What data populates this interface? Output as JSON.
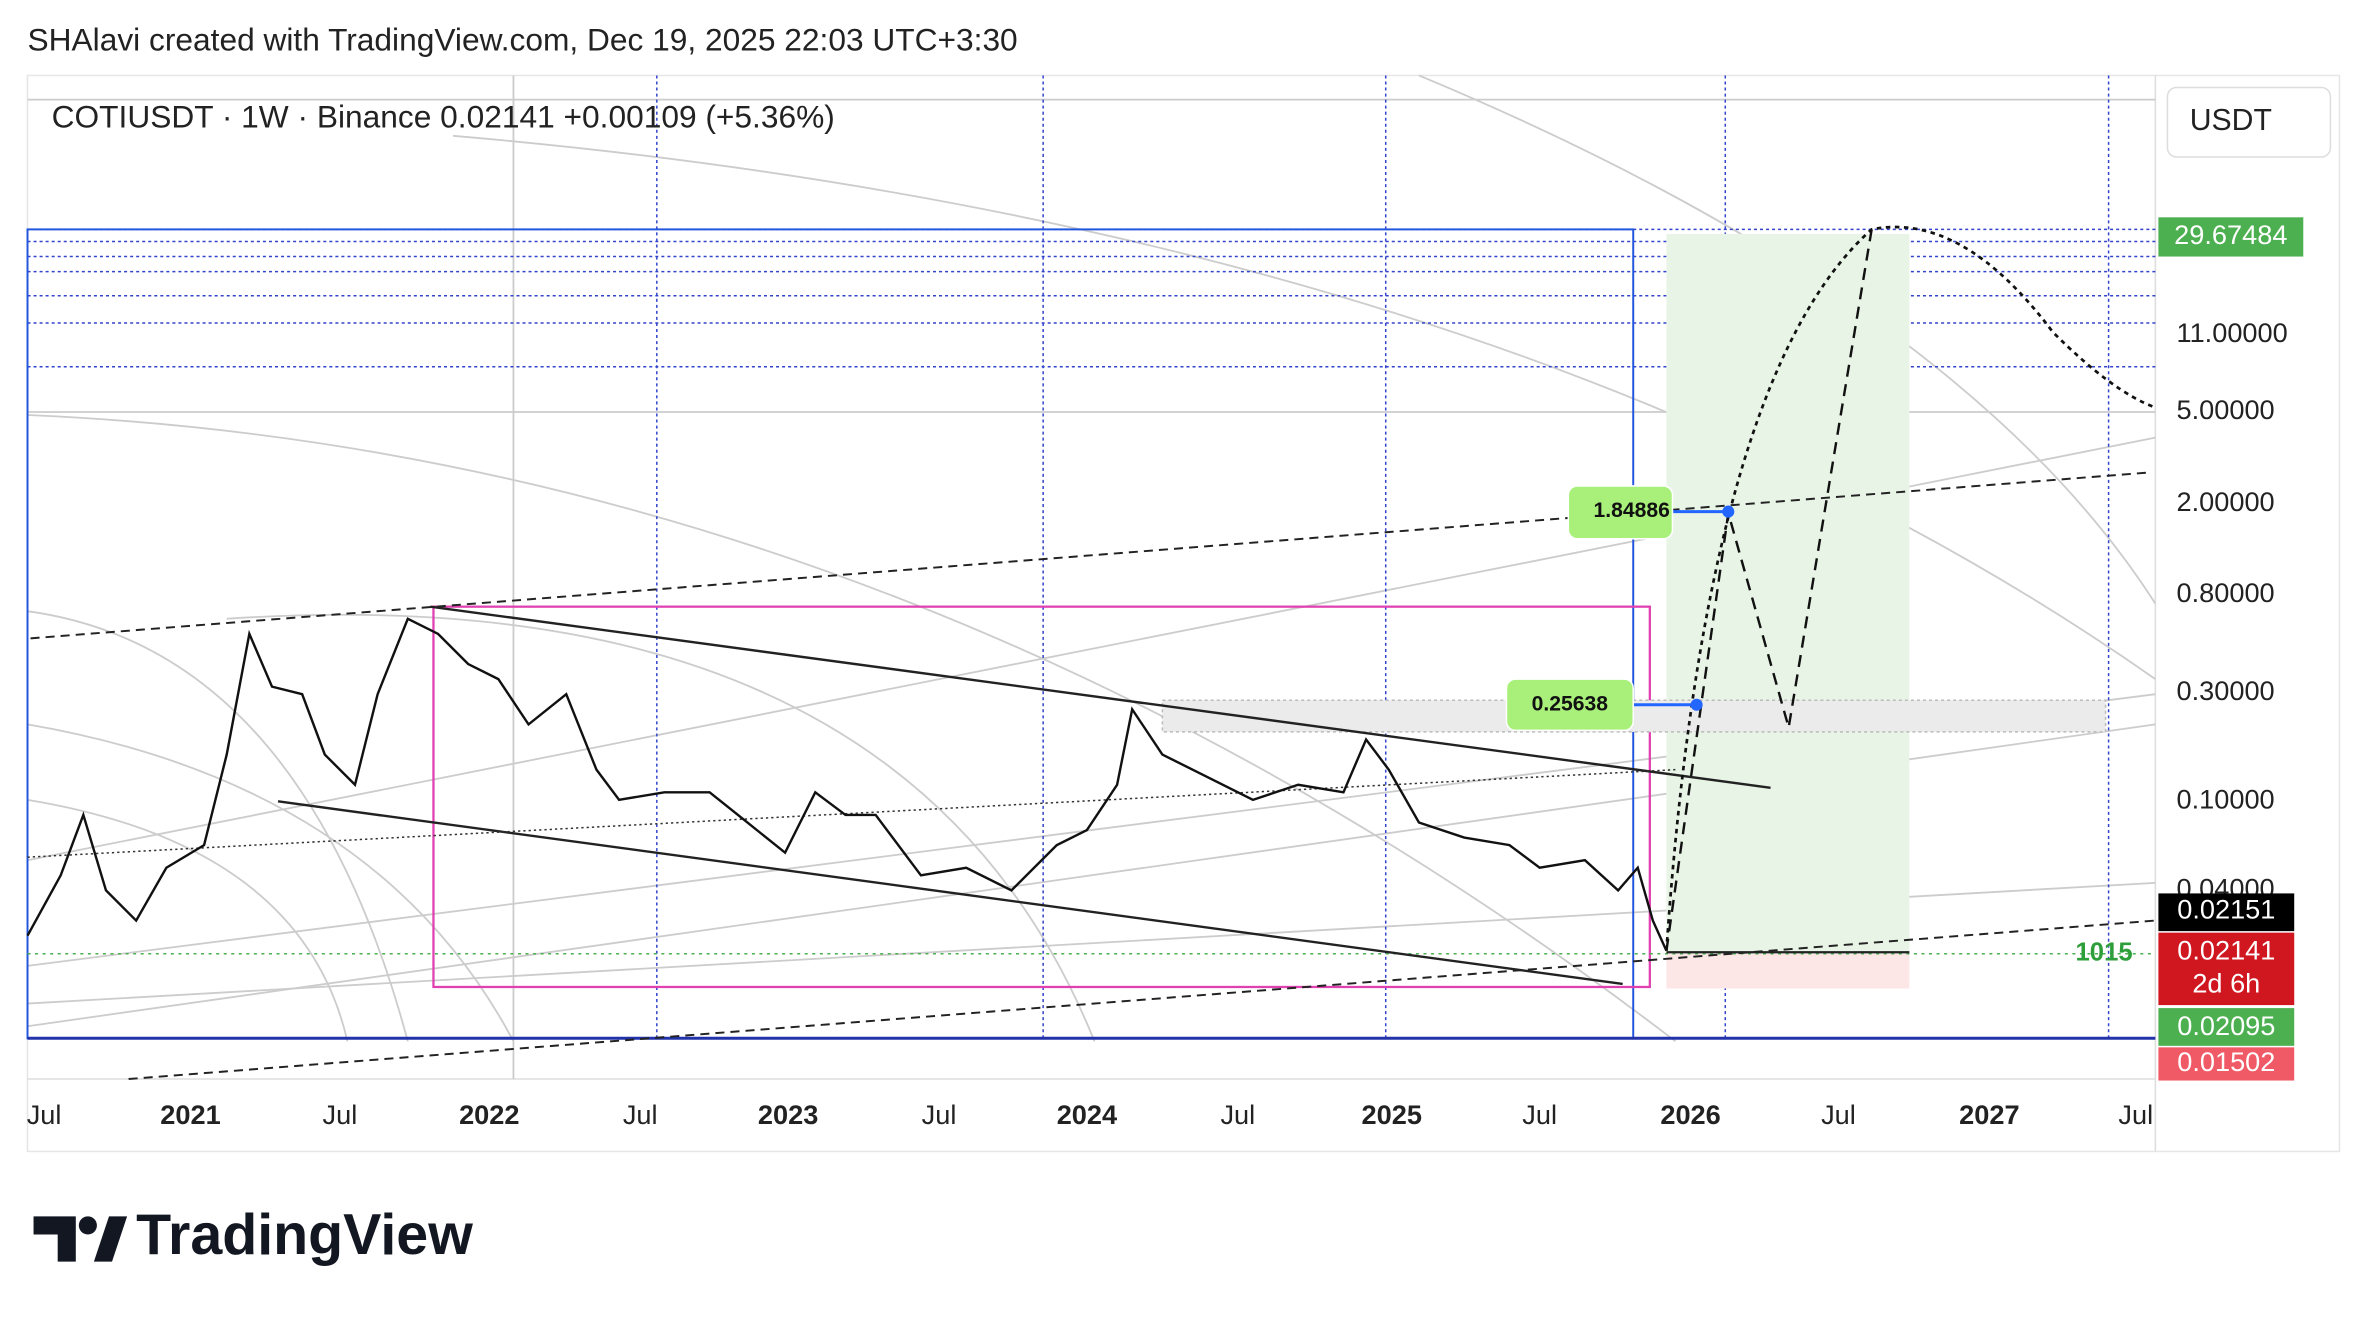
{
  "header": {
    "text": "SHAlavi created with TradingView.com, Dec 19, 2025 22:03 UTC+3:30"
  },
  "symbol_line": {
    "text": "COTIUSDT · 1W · Binance  0.02141  +0.00109 (+5.36%)"
  },
  "currency_button": {
    "label": "USDT"
  },
  "price_axis": {
    "labels": [
      "11.00000",
      "5.00000",
      "2.00000",
      "0.80000",
      "0.30000",
      "0.10000",
      "0.04000"
    ],
    "badges": {
      "target": "29.67484",
      "last": "0.02151",
      "current": "0.02141",
      "countdown": "2d 6h",
      "low": "0.02095",
      "stop": "0.01502"
    }
  },
  "time_axis": {
    "labels": [
      "Jul",
      "2021",
      "Jul",
      "2022",
      "Jul",
      "2023",
      "Jul",
      "2024",
      "Jul",
      "2025",
      "Jul",
      "2026",
      "Jul",
      "2027",
      "Jul"
    ]
  },
  "annotations": {
    "level_a": "1.84886",
    "level_b": "0.25638",
    "bars_count": "1015"
  },
  "logo": {
    "text": "TradingView"
  }
}
